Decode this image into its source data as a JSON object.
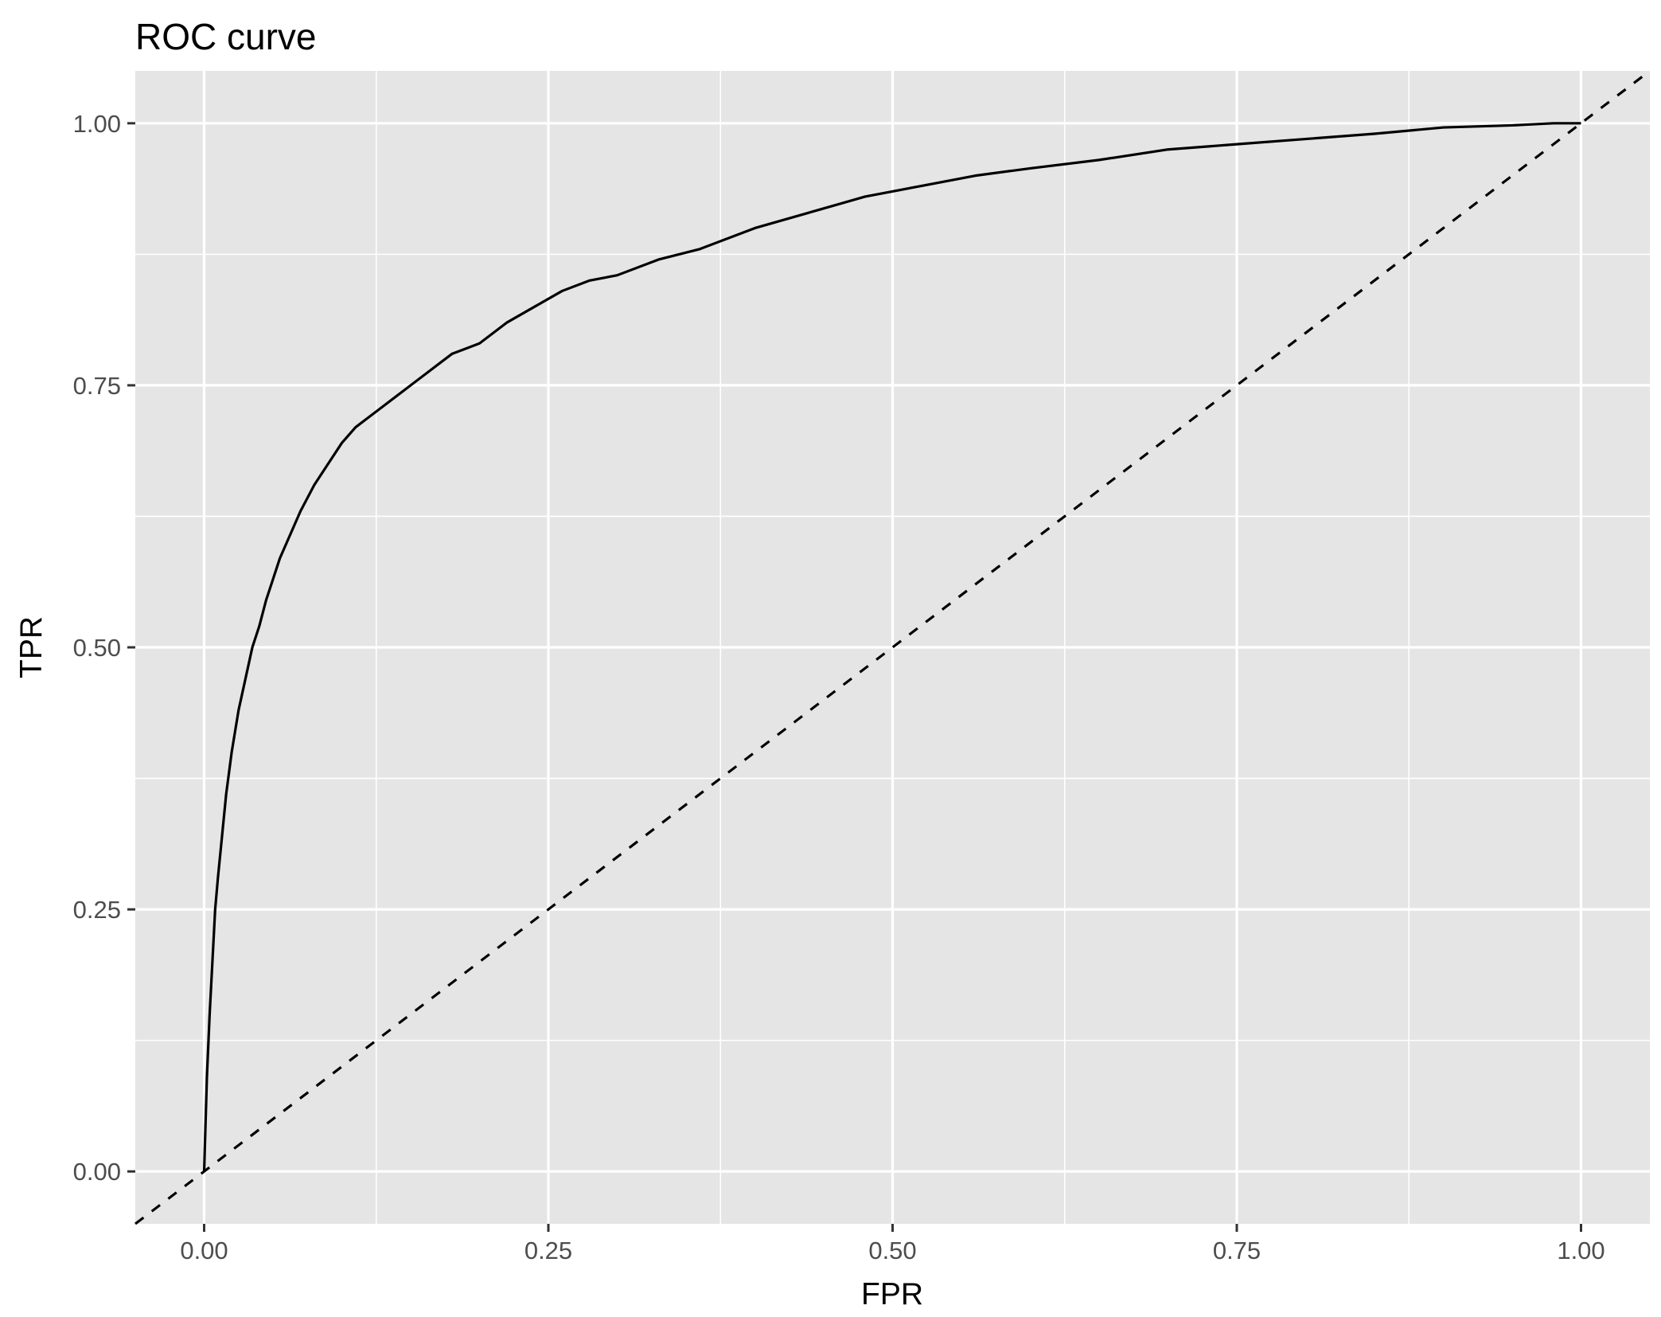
{
  "chart_data": {
    "type": "line",
    "title": "ROC curve",
    "xlabel": "FPR",
    "ylabel": "TPR",
    "xlim": [
      -0.05,
      1.05
    ],
    "ylim": [
      -0.05,
      1.05
    ],
    "x_ticks": [
      {
        "value": 0,
        "label": "0.00"
      },
      {
        "value": 0.25,
        "label": "0.25"
      },
      {
        "value": 0.5,
        "label": "0.50"
      },
      {
        "value": 0.75,
        "label": "0.75"
      },
      {
        "value": 1,
        "label": "1.00"
      }
    ],
    "y_ticks": [
      {
        "value": 0,
        "label": "0.00"
      },
      {
        "value": 0.25,
        "label": "0.25"
      },
      {
        "value": 0.5,
        "label": "0.50"
      },
      {
        "value": 0.75,
        "label": "0.75"
      },
      {
        "value": 1,
        "label": "1.00"
      }
    ],
    "minor_breaks": [
      0.125,
      0.375,
      0.625,
      0.875
    ],
    "grid": true,
    "legend": "none",
    "colors": {
      "panel": "#e5e5e5",
      "grid": "#ffffff",
      "line": "#000000",
      "tick_label": "#4d4d4d"
    },
    "series": [
      {
        "style": "solid",
        "x": [
          0,
          0.002,
          0.004,
          0.006,
          0.008,
          0.01,
          0.013,
          0.016,
          0.02,
          0.025,
          0.03,
          0.035,
          0.04,
          0.045,
          0.05,
          0.055,
          0.06,
          0.065,
          0.07,
          0.08,
          0.09,
          0.1,
          0.11,
          0.12,
          0.13,
          0.14,
          0.15,
          0.16,
          0.17,
          0.18,
          0.19,
          0.2,
          0.22,
          0.24,
          0.26,
          0.28,
          0.3,
          0.33,
          0.36,
          0.4,
          0.44,
          0.48,
          0.52,
          0.56,
          0.6,
          0.65,
          0.7,
          0.75,
          0.8,
          0.85,
          0.9,
          0.95,
          0.98,
          1.0
        ],
        "y": [
          0,
          0.09,
          0.15,
          0.2,
          0.25,
          0.28,
          0.32,
          0.36,
          0.4,
          0.44,
          0.47,
          0.5,
          0.52,
          0.545,
          0.565,
          0.585,
          0.6,
          0.615,
          0.63,
          0.655,
          0.675,
          0.695,
          0.71,
          0.72,
          0.73,
          0.74,
          0.75,
          0.76,
          0.77,
          0.78,
          0.785,
          0.79,
          0.81,
          0.825,
          0.84,
          0.85,
          0.855,
          0.87,
          0.88,
          0.9,
          0.915,
          0.93,
          0.94,
          0.95,
          0.957,
          0.965,
          0.975,
          0.98,
          0.985,
          0.99,
          0.996,
          0.998,
          1.0,
          1.0
        ]
      },
      {
        "style": "dashed",
        "x": [
          -0.05,
          1.05
        ],
        "y": [
          -0.05,
          1.05
        ]
      }
    ]
  }
}
